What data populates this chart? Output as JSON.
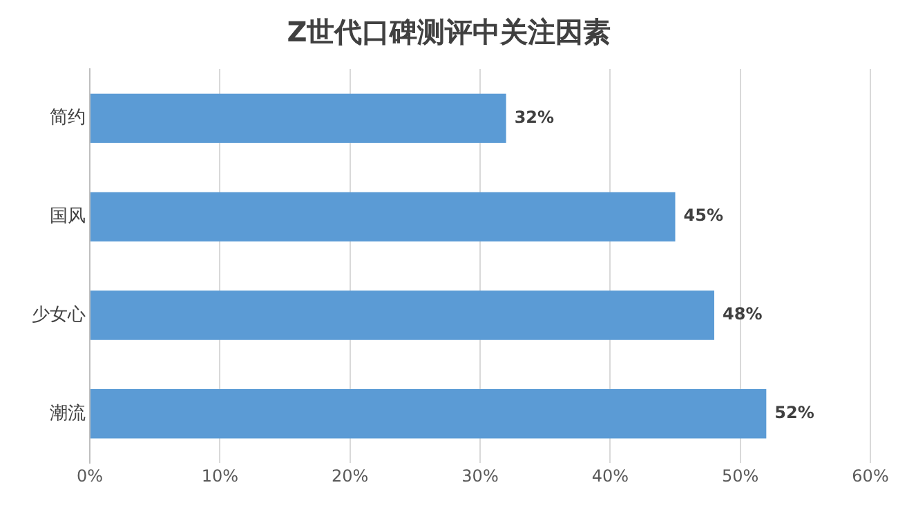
{
  "chart_data": {
    "type": "bar",
    "title": "Z世代口碑测评中关注因素",
    "orientation": "horizontal",
    "categories": [
      "简约",
      "国风",
      "少女心",
      "潮流"
    ],
    "values": [
      32,
      45,
      48,
      52
    ],
    "color": "#5b9bd5",
    "value_labels": [
      "32%",
      "45%",
      "48%",
      "52%"
    ],
    "xlim": [
      0,
      60
    ],
    "xticks": [
      {
        "value": 0,
        "label": "0%"
      },
      {
        "value": 10,
        "label": "10%"
      },
      {
        "value": 20,
        "label": "20%"
      },
      {
        "value": 30,
        "label": "30%"
      },
      {
        "value": 40,
        "label": "40%"
      },
      {
        "value": 50,
        "label": "50%"
      },
      {
        "value": 60,
        "label": "60%"
      }
    ],
    "grid": "x"
  }
}
